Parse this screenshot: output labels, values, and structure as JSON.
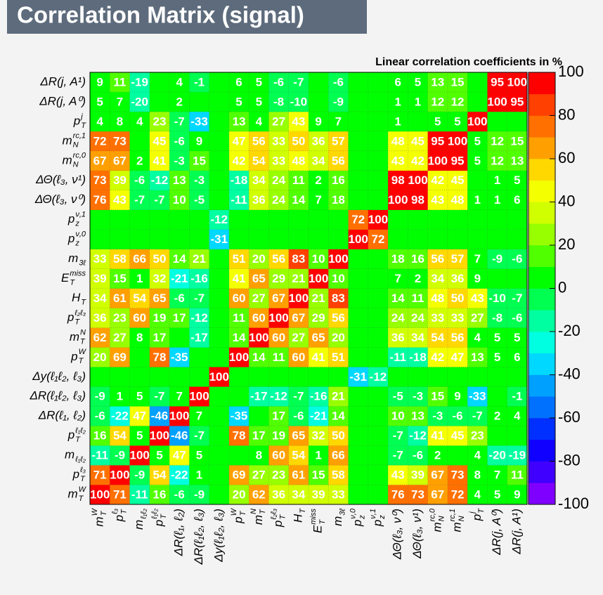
{
  "chart_data": {
    "type": "heatmap",
    "title": "Correlation Matrix (signal)",
    "colorbar_title": "Linear correlation coefficients in %",
    "categories": [
      {
        "main": "m",
        "sub": "T",
        "sup": "W"
      },
      {
        "main": "p",
        "sub": "T",
        "sup": "ℓ₃"
      },
      {
        "main": "m",
        "sub": "ℓ₁ℓ₂"
      },
      {
        "main": "p",
        "sub": "T",
        "sup": "ℓ₁ℓ₂"
      },
      {
        "main": "ΔR(ℓ₁, ℓ₂)"
      },
      {
        "main": "ΔR(ℓ₁ℓ₂, ℓ₃)"
      },
      {
        "main": "Δy(ℓ₁ℓ₂, ℓ₃)"
      },
      {
        "main": "p",
        "sub": "T",
        "sup": "W"
      },
      {
        "main": "m",
        "sub": "T",
        "sup": "N"
      },
      {
        "main": "p",
        "sub": "T",
        "sup": "ℓ₂ℓ₃"
      },
      {
        "main": "H",
        "sub": "T"
      },
      {
        "main": "E",
        "sub": "T",
        "sup": "miss"
      },
      {
        "main": "m",
        "sub": "3ℓ"
      },
      {
        "main": "p",
        "sub": "z",
        "sup": "ν,0"
      },
      {
        "main": "p",
        "sub": "z",
        "sup": "ν,1"
      },
      {
        "main": "ΔΘ(ℓ₃, ν⁰)"
      },
      {
        "main": "ΔΘ(ℓ₃, ν¹)"
      },
      {
        "main": "m",
        "sub": "N",
        "sup": "rc,0"
      },
      {
        "main": "m",
        "sub": "N",
        "sup": "rc,1"
      },
      {
        "main": "p",
        "sub": "T",
        "sup": "j"
      },
      {
        "main": "ΔR(j, A⁰)"
      },
      {
        "main": "ΔR(j, A¹)"
      }
    ],
    "values": [
      [
        100,
        71,
        -11,
        16,
        -6,
        -9,
        null,
        20,
        62,
        36,
        34,
        39,
        33,
        null,
        null,
        76,
        73,
        67,
        72,
        4,
        5,
        9
      ],
      [
        71,
        100,
        -9,
        54,
        -22,
        1,
        null,
        69,
        27,
        23,
        61,
        15,
        58,
        null,
        null,
        43,
        39,
        67,
        73,
        8,
        7,
        11
      ],
      [
        -11,
        -9,
        100,
        5,
        47,
        5,
        null,
        null,
        8,
        60,
        54,
        1,
        66,
        null,
        null,
        -7,
        -6,
        2,
        null,
        4,
        -20,
        -19
      ],
      [
        16,
        54,
        5,
        100,
        -46,
        -7,
        null,
        78,
        17,
        19,
        65,
        32,
        50,
        null,
        null,
        -7,
        -12,
        41,
        45,
        23,
        null,
        null
      ],
      [
        -6,
        -22,
        47,
        -46,
        100,
        7,
        null,
        -35,
        null,
        17,
        -6,
        -21,
        14,
        null,
        null,
        10,
        13,
        -3,
        -6,
        -7,
        2,
        4
      ],
      [
        -9,
        1,
        5,
        -7,
        7,
        100,
        null,
        null,
        -17,
        -12,
        -7,
        -16,
        21,
        null,
        null,
        -5,
        -3,
        15,
        9,
        -33,
        null,
        -1
      ],
      [
        null,
        null,
        null,
        null,
        null,
        null,
        100,
        null,
        null,
        null,
        null,
        null,
        null,
        -31,
        -12,
        null,
        null,
        null,
        null,
        null,
        null,
        null
      ],
      [
        20,
        69,
        null,
        78,
        -35,
        null,
        null,
        100,
        14,
        11,
        60,
        41,
        51,
        null,
        null,
        -11,
        -18,
        42,
        47,
        13,
        5,
        6
      ],
      [
        62,
        27,
        8,
        17,
        null,
        -17,
        null,
        14,
        100,
        60,
        27,
        65,
        20,
        null,
        null,
        36,
        34,
        54,
        56,
        4,
        5,
        5
      ],
      [
        36,
        23,
        60,
        19,
        17,
        -12,
        null,
        11,
        60,
        100,
        67,
        29,
        56,
        null,
        null,
        24,
        24,
        33,
        33,
        27,
        -8,
        -6
      ],
      [
        34,
        61,
        54,
        65,
        -6,
        -7,
        null,
        60,
        27,
        67,
        100,
        21,
        83,
        null,
        null,
        14,
        11,
        48,
        50,
        43,
        -10,
        -7
      ],
      [
        39,
        15,
        1,
        32,
        -21,
        -16,
        null,
        41,
        65,
        29,
        21,
        100,
        10,
        null,
        null,
        7,
        2,
        34,
        36,
        9,
        null,
        null
      ],
      [
        33,
        58,
        66,
        50,
        14,
        21,
        null,
        51,
        20,
        56,
        83,
        10,
        100,
        null,
        null,
        18,
        16,
        56,
        57,
        7,
        -9,
        -6
      ],
      [
        null,
        null,
        null,
        null,
        null,
        null,
        -31,
        null,
        null,
        null,
        null,
        null,
        null,
        100,
        72,
        null,
        null,
        null,
        null,
        null,
        null,
        null
      ],
      [
        null,
        null,
        null,
        null,
        null,
        null,
        -12,
        null,
        null,
        null,
        null,
        null,
        null,
        72,
        100,
        null,
        null,
        null,
        null,
        null,
        null,
        null
      ],
      [
        76,
        43,
        -7,
        -7,
        10,
        -5,
        null,
        -11,
        36,
        24,
        14,
        7,
        18,
        null,
        null,
        100,
        98,
        43,
        48,
        1,
        1,
        6
      ],
      [
        73,
        39,
        -6,
        -12,
        13,
        -3,
        null,
        -18,
        34,
        24,
        11,
        2,
        16,
        null,
        null,
        98,
        100,
        42,
        45,
        null,
        1,
        5
      ],
      [
        67,
        67,
        2,
        41,
        -3,
        15,
        null,
        42,
        54,
        33,
        48,
        34,
        56,
        null,
        null,
        43,
        42,
        100,
        95,
        5,
        12,
        13
      ],
      [
        72,
        73,
        null,
        45,
        -6,
        9,
        null,
        47,
        56,
        33,
        50,
        36,
        57,
        null,
        null,
        48,
        45,
        95,
        100,
        5,
        12,
        15
      ],
      [
        4,
        8,
        4,
        23,
        -7,
        -33,
        null,
        13,
        4,
        27,
        43,
        9,
        7,
        null,
        null,
        1,
        null,
        5,
        5,
        100,
        null,
        null
      ],
      [
        5,
        7,
        -20,
        null,
        2,
        null,
        null,
        5,
        5,
        -8,
        -10,
        null,
        -9,
        null,
        null,
        1,
        1,
        12,
        12,
        null,
        100,
        95
      ],
      [
        9,
        11,
        -19,
        null,
        4,
        -1,
        null,
        6,
        5,
        -6,
        -7,
        null,
        -6,
        null,
        null,
        6,
        5,
        13,
        15,
        null,
        95,
        100
      ]
    ],
    "zlim": [
      -100,
      100
    ],
    "zticks": [
      -100,
      -80,
      -60,
      -40,
      -20,
      0,
      20,
      40,
      60,
      80,
      100
    ],
    "palette": [
      "#8000ff",
      "#4000ff",
      "#1000ff",
      "#0030ff",
      "#0070ff",
      "#00a0ff",
      "#00d8ff",
      "#00ffe0",
      "#00ffa0",
      "#00ff50",
      "#00ff00",
      "#50ff00",
      "#98ff00",
      "#d0ff00",
      "#f4ff00",
      "#ffd800",
      "#ffa000",
      "#ff7000",
      "#ff4000",
      "#ff0000"
    ],
    "grid": true
  }
}
